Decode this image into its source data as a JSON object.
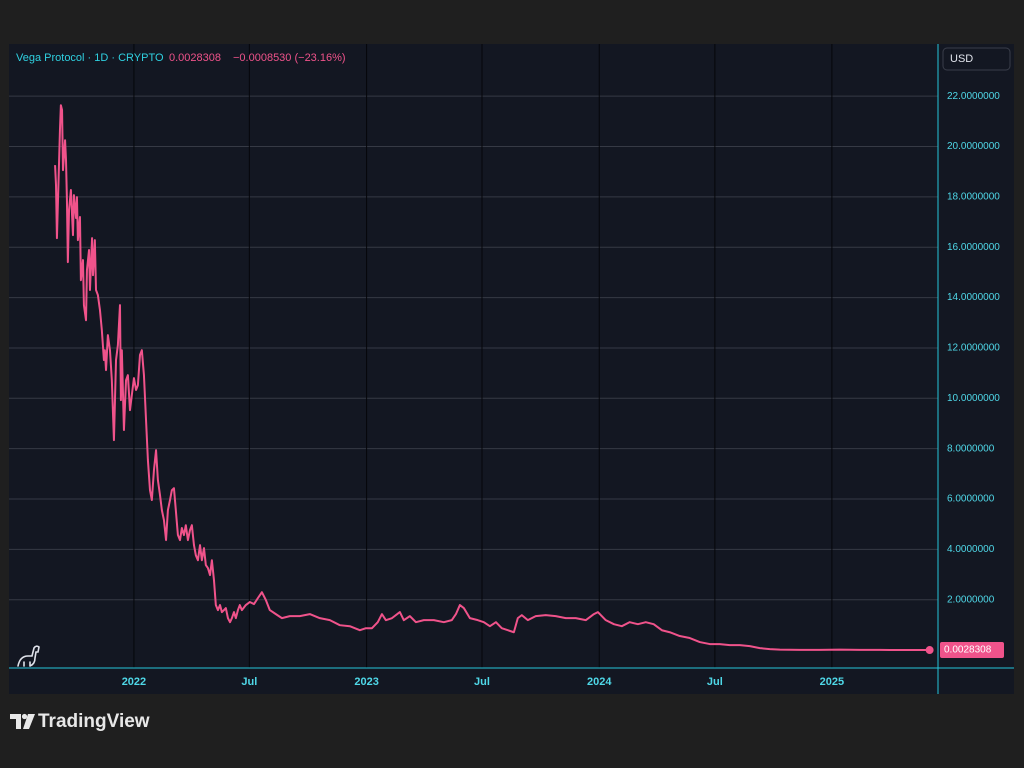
{
  "chart_data": {
    "type": "line",
    "title": "Vega Protocol · 1D · CRYPTO",
    "change": "−0.0008530 (−23.16%)",
    "currency": "USD",
    "color": "#f0538b",
    "grid": true,
    "x": [
      2021.661,
      2021.665,
      2021.669,
      2021.682,
      2021.686,
      2021.691,
      2021.695,
      2021.704,
      2021.708,
      2021.712,
      2021.716,
      2021.721,
      2021.729,
      2021.738,
      2021.742,
      2021.751,
      2021.755,
      2021.759,
      2021.768,
      2021.772,
      2021.781,
      2021.785,
      2021.794,
      2021.798,
      2021.807,
      2021.811,
      2021.82,
      2021.824,
      2021.832,
      2021.837,
      2021.845,
      2021.854,
      2021.862,
      2021.871,
      2021.875,
      2021.88,
      2021.888,
      2021.897,
      2021.905,
      2021.914,
      2021.923,
      2021.931,
      2021.94,
      2021.944,
      2021.948,
      2021.957,
      2021.966,
      2021.974,
      2021.983,
      2021.991,
      2022.0,
      2022.009,
      2022.017,
      2022.026,
      2022.034,
      2022.043,
      2022.052,
      2022.06,
      2022.069,
      2022.077,
      2022.086,
      2022.095,
      2022.103,
      2022.112,
      2022.12,
      2022.129,
      2022.138,
      2022.146,
      2022.155,
      2022.163,
      2022.172,
      2022.18,
      2022.189,
      2022.198,
      2022.206,
      2022.215,
      2022.223,
      2022.232,
      2022.241,
      2022.249,
      2022.258,
      2022.266,
      2022.275,
      2022.284,
      2022.292,
      2022.301,
      2022.309,
      2022.318,
      2022.327,
      2022.335,
      2022.344,
      2022.352,
      2022.361,
      2022.37,
      2022.378,
      2022.387,
      2022.395,
      2022.404,
      2022.413,
      2022.421,
      2022.43,
      2022.438,
      2022.447,
      2022.455,
      2022.464,
      2022.481,
      2022.498,
      2022.516,
      2022.533,
      2022.55,
      2022.567,
      2022.584,
      2022.61,
      2022.636,
      2022.67,
      2022.713,
      2022.756,
      2022.799,
      2022.842,
      2022.885,
      2022.928,
      2022.971,
      2022.997,
      2023.023,
      2023.048,
      2023.066,
      2023.083,
      2023.109,
      2023.143,
      2023.16,
      2023.186,
      2023.212,
      2023.246,
      2023.289,
      2023.332,
      2023.366,
      2023.384,
      2023.401,
      2023.418,
      2023.444,
      2023.478,
      2023.504,
      2023.53,
      2023.556,
      2023.581,
      2023.607,
      2023.633,
      2023.65,
      2023.667,
      2023.693,
      2023.727,
      2023.77,
      2023.813,
      2023.856,
      2023.899,
      2023.942,
      2023.977,
      2023.994,
      2024.028,
      2024.063,
      2024.097,
      2024.131,
      2024.166,
      2024.2,
      2024.234,
      2024.269,
      2024.303,
      2024.346,
      2024.389,
      2024.432,
      2024.475,
      2024.518,
      2024.561,
      2024.604,
      2024.647,
      2024.69,
      2024.733,
      2024.776,
      2024.862,
      2024.948,
      2025.034,
      2025.12,
      2025.206,
      2025.292,
      2025.378,
      2025.42
    ],
    "values": [
      19.26,
      18.47,
      16.36,
      20.65,
      21.64,
      21.45,
      19.06,
      20.25,
      19.46,
      17.87,
      15.41,
      17.47,
      18.27,
      16.48,
      18.07,
      17.16,
      17.99,
      16.28,
      17.2,
      14.69,
      15.49,
      13.7,
      13.1,
      15.09,
      15.89,
      14.3,
      16.36,
      14.89,
      16.28,
      14.3,
      14.1,
      13.5,
      12.71,
      11.52,
      11.91,
      11.12,
      12.51,
      11.91,
      10.72,
      8.34,
      11.52,
      12.11,
      13.7,
      9.93,
      11.91,
      8.74,
      10.72,
      10.92,
      9.53,
      10.13,
      10.8,
      10.33,
      10.52,
      11.72,
      11.91,
      10.92,
      9.13,
      7.55,
      6.35,
      5.96,
      7.15,
      7.94,
      6.75,
      6.16,
      5.56,
      5.16,
      4.37,
      5.56,
      5.96,
      6.35,
      6.43,
      5.56,
      4.57,
      4.37,
      4.85,
      4.57,
      4.96,
      4.37,
      4.77,
      4.96,
      4.17,
      3.77,
      3.57,
      4.17,
      3.57,
      4.05,
      3.38,
      3.26,
      2.98,
      3.57,
      2.78,
      1.79,
      1.59,
      1.79,
      1.51,
      1.59,
      1.67,
      1.27,
      1.11,
      1.27,
      1.51,
      1.27,
      1.59,
      1.79,
      1.59,
      1.79,
      1.91,
      1.83,
      2.07,
      2.3,
      1.99,
      1.59,
      1.43,
      1.27,
      1.35,
      1.35,
      1.43,
      1.27,
      1.19,
      0.99,
      0.95,
      0.79,
      0.87,
      0.87,
      1.11,
      1.43,
      1.19,
      1.27,
      1.51,
      1.19,
      1.35,
      1.11,
      1.19,
      1.19,
      1.11,
      1.19,
      1.43,
      1.79,
      1.67,
      1.27,
      1.19,
      1.11,
      0.95,
      1.11,
      0.87,
      0.79,
      0.71,
      1.27,
      1.39,
      1.19,
      1.35,
      1.39,
      1.35,
      1.27,
      1.27,
      1.19,
      1.43,
      1.51,
      1.19,
      1.03,
      0.95,
      1.11,
      1.03,
      1.11,
      1.03,
      0.79,
      0.71,
      0.56,
      0.48,
      0.32,
      0.24,
      0.24,
      0.2,
      0.2,
      0.16,
      0.08,
      0.04,
      0.02,
      0.01,
      0.01,
      0.02,
      0.01,
      0.008,
      0.005,
      0.004,
      0.0028308
    ],
    "xlim": [
      2021.463,
      2025.456
    ],
    "ylim": [
      -0.71,
      24.07
    ],
    "xticks": [
      2022,
      {
        "value": 2022.496,
        "label": "Jul"
      },
      2023,
      {
        "value": 2023.496,
        "label": "Jul"
      },
      2024,
      {
        "value": 2024.497,
        "label": "Jul"
      },
      2025
    ],
    "yticks": [
      {
        "value": 2,
        "label": "2.0000000"
      },
      {
        "value": 4,
        "label": "4.0000000"
      },
      {
        "value": 6,
        "label": "6.0000000"
      },
      {
        "value": 8,
        "label": "8.0000000"
      },
      {
        "value": 10,
        "label": "10.0000000"
      },
      {
        "value": 12,
        "label": "12.0000000"
      },
      {
        "value": 14,
        "label": "14.0000000"
      },
      {
        "value": 16,
        "label": "16.0000000"
      },
      {
        "value": 18,
        "label": "18.0000000"
      },
      {
        "value": 20,
        "label": "20.0000000"
      },
      {
        "value": 22,
        "label": "22.0000000"
      }
    ]
  },
  "watermark": "TradingView"
}
